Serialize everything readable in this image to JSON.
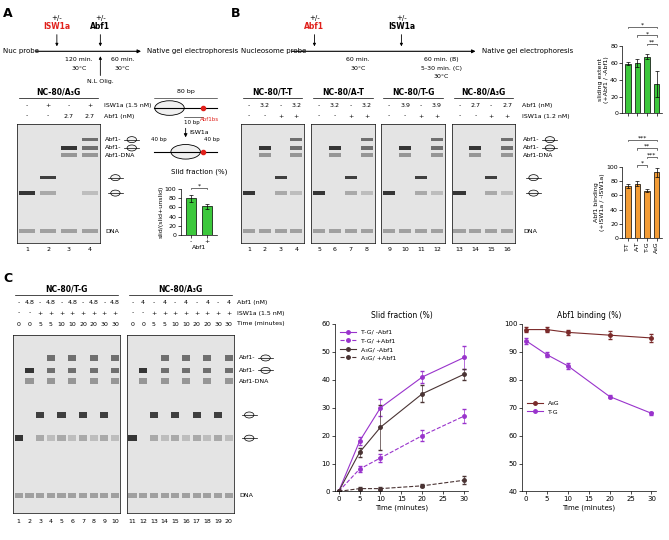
{
  "panel_labels": [
    "A",
    "B",
    "C"
  ],
  "panel_A": {
    "scheme": {
      "start": "Nuc probe",
      "steps": [
        {
          "pm": "+/-",
          "agent": "ISW1a",
          "color": "#e0201b"
        },
        {
          "pm": "+/-",
          "agent": "Abf1",
          "color": "#000000"
        }
      ],
      "times": [
        [
          "120 min.",
          "30°C"
        ],
        [
          "60 min.",
          "30°C"
        ]
      ],
      "end": "Native gel electrophoresis",
      "addition": "N.L Olig."
    },
    "gel": {
      "row_labels": [
        "ISW1a (1.5 nM)",
        "Abf1 (nM)"
      ],
      "groups": [
        {
          "title": "NC-80/A₃G",
          "rows": [
            [
              "-",
              "+",
              "-",
              "+"
            ],
            [
              "-",
              "-",
              "2.7",
              "2.7"
            ]
          ],
          "lanes": [
            1,
            2,
            3,
            4
          ]
        }
      ],
      "band_labels": [
        "Abf1-",
        "Abf1-",
        "Abf1-DNA",
        "DNA"
      ]
    },
    "diagram": {
      "length": "80 bp",
      "site": "10 bp",
      "site_label": "Abf1bs",
      "enzyme": "ISW1a",
      "left": "40 bp",
      "right": "40 bp"
    }
  },
  "panel_B": {
    "scheme": {
      "start": "Nucleosome probe",
      "steps": [
        {
          "pm": "+/-",
          "agent": "Abf1",
          "color": "#e0201b"
        },
        {
          "pm": "+/-",
          "agent": "ISW1a",
          "color": "#000000"
        }
      ],
      "times": [
        [
          "60 min.",
          "30°C"
        ],
        [
          "60 min. (B)",
          "5-30 min. (C)",
          "30°C"
        ]
      ],
      "end": "Native gel electrophoresis"
    },
    "gel": {
      "row_labels": [
        "Abf1 (nM)",
        "ISW1a (1.2 nM)"
      ],
      "groups": [
        {
          "title": "NC-80/T-T",
          "rows": [
            [
              "-",
              "3.2",
              "-",
              "3.2"
            ],
            [
              "-",
              "-",
              "+",
              "+"
            ]
          ],
          "lanes": [
            1,
            2,
            3,
            4
          ]
        },
        {
          "title": "NC-80/A-T",
          "rows": [
            [
              "-",
              "3.2",
              "-",
              "3.2"
            ],
            [
              "-",
              "-",
              "+",
              "+"
            ]
          ],
          "lanes": [
            5,
            6,
            7,
            8
          ]
        },
        {
          "title": "NC-80/T-G",
          "rows": [
            [
              "-",
              "3.9",
              "-",
              "3.9"
            ],
            [
              "-",
              "-",
              "+",
              "+"
            ]
          ],
          "lanes": [
            9,
            10,
            11,
            12
          ]
        },
        {
          "title": "NC-80/A₃G",
          "rows": [
            [
              "-",
              "2.7",
              "-",
              "2.7"
            ],
            [
              "-",
              "-",
              "+",
              "+"
            ]
          ],
          "lanes": [
            13,
            14,
            15,
            16
          ]
        }
      ],
      "band_labels": [
        "Abf1-",
        "Abf1-",
        "Abf1-DNA",
        "DNA"
      ]
    }
  },
  "panel_C": {
    "gel": {
      "row_labels": [
        "Abf1 (nM)",
        "ISW1a (1.5 nM)",
        "Time (minutes)"
      ],
      "groups": [
        {
          "title": "NC-80/T-G",
          "rows": [
            [
              "-",
              "4.8",
              "-",
              "4.8",
              "-",
              "4.8",
              "-",
              "4.8",
              "-",
              "4.8"
            ],
            [
              "-",
              "-",
              "+",
              "+",
              "+",
              "+",
              "+",
              "+",
              "+",
              "+"
            ],
            [
              0,
              0,
              5,
              5,
              10,
              10,
              20,
              20,
              30,
              30
            ]
          ],
          "lanes": [
            1,
            2,
            3,
            4,
            5,
            6,
            7,
            8,
            9,
            10
          ]
        },
        {
          "title": "NC-80/A₃G",
          "rows": [
            [
              "-",
              "4",
              "-",
              "4",
              "-",
              "4",
              "-",
              "4",
              "-",
              "4"
            ],
            [
              "-",
              "-",
              "+",
              "+",
              "+",
              "+",
              "+",
              "+",
              "+",
              "+"
            ],
            [
              0,
              0,
              5,
              5,
              10,
              10,
              20,
              20,
              30,
              30
            ]
          ],
          "lanes": [
            11,
            12,
            13,
            14,
            15,
            16,
            17,
            18,
            19,
            20
          ]
        }
      ],
      "band_labels": [
        "Abf1-",
        "Abf1-",
        "Abf1-DNA",
        "DNA"
      ]
    }
  },
  "chart_data": [
    {
      "type": "bar",
      "title": "Slid fraction (%)",
      "x_label": "Abf1",
      "y_label": "slid/(slid+unslid)",
      "categories": [
        "-",
        "+"
      ],
      "values": [
        80,
        62
      ],
      "errors": [
        8,
        6
      ],
      "color": "#3cc83c",
      "ylim": [
        0,
        100
      ],
      "yticks": [
        0,
        20,
        40,
        60,
        80,
        100
      ],
      "annotations": [
        {
          "text": "*",
          "pair": [
            "-",
            "+"
          ]
        }
      ]
    },
    {
      "type": "bar",
      "y_label": "sliding extent\n(+Abf1 / -Abf1)",
      "tick_labels": "y",
      "categories": [
        "T-T",
        "A-T",
        "T-G",
        "A₃G"
      ],
      "values": [
        59,
        60,
        67,
        35
      ],
      "errors": [
        2,
        5,
        3,
        15
      ],
      "color": "#3cc83c",
      "ylim": [
        0,
        80
      ],
      "yticks": [
        0,
        20,
        40,
        60,
        80
      ],
      "annotations": [
        {
          "text": "**",
          "pair": [
            "T-G",
            "A₃G"
          ]
        },
        {
          "text": "*",
          "pair": [
            "A-T",
            "A₃G"
          ]
        },
        {
          "text": "*",
          "pair": [
            "T-T",
            "A₃G"
          ]
        }
      ]
    },
    {
      "type": "bar",
      "y_label": "Abf1 binding\n(+ISW1a / -ISW1a)",
      "categories": [
        "T-T",
        "A-T",
        "T-G",
        "A₃G"
      ],
      "values": [
        73,
        77,
        67,
        93
      ],
      "errors": [
        3,
        4,
        2,
        6
      ],
      "color": "#f39c35",
      "ylim": [
        0,
        100
      ],
      "yticks": [
        0,
        20,
        40,
        60,
        80,
        100
      ],
      "annotations": [
        {
          "text": "*",
          "pair": [
            "A-T",
            "T-G"
          ]
        },
        {
          "text": "***",
          "pair": [
            "T-G",
            "A₃G"
          ]
        },
        {
          "text": "**",
          "pair": [
            "A-T",
            "A₃G"
          ]
        },
        {
          "text": "***",
          "pair": [
            "T-T",
            "A₃G"
          ]
        }
      ]
    },
    {
      "type": "line",
      "title": "Slid fraction (%)",
      "x_label": "Time (minutes)",
      "legend": "upper left",
      "x": [
        0,
        5,
        10,
        20,
        30
      ],
      "xlim": [
        -1,
        31
      ],
      "xticks": [
        0,
        5,
        10,
        15,
        20,
        25,
        30
      ],
      "ylim": [
        0,
        60
      ],
      "yticks": [
        0,
        10,
        20,
        30,
        40,
        50,
        60
      ],
      "series": [
        {
          "name": "T-G/ -Abf1",
          "color": "#9933cc",
          "marker": "o",
          "line_style": "solid",
          "values": [
            0,
            18,
            30,
            41,
            48
          ],
          "errors": [
            0,
            1.5,
            3,
            2,
            4
          ]
        },
        {
          "name": "T-G/ +Abf1",
          "color": "#9933cc",
          "marker": "o",
          "line_style": "dashed",
          "values": [
            0,
            8,
            12,
            20,
            27
          ],
          "errors": [
            0,
            1,
            1.5,
            2,
            2.5
          ]
        },
        {
          "name": "A₃G/ -Abf1",
          "color": "#4a3434",
          "marker": "o",
          "line_style": "solid",
          "values": [
            0,
            14,
            23,
            35,
            42
          ],
          "errors": [
            0,
            1.5,
            8,
            3,
            2
          ]
        },
        {
          "name": "A₃G/ +Abf1",
          "color": "#4a3434",
          "marker": "o",
          "line_style": "dashed",
          "values": [
            0,
            1,
            1,
            2,
            4
          ],
          "errors": [
            0,
            0.5,
            0.5,
            0.5,
            1.5
          ]
        }
      ]
    },
    {
      "type": "line",
      "title": "Abf1 binding (%)",
      "x_label": "Time (minutes)",
      "legend": "center left",
      "x": [
        0,
        5,
        10,
        20,
        30
      ],
      "xlim": [
        -1,
        31
      ],
      "xticks": [
        0,
        5,
        10,
        15,
        20,
        25,
        30
      ],
      "ylim": [
        40,
        100
      ],
      "yticks": [
        40,
        50,
        60,
        70,
        80,
        90,
        100
      ],
      "series": [
        {
          "name": "A₃G",
          "color": "#7a2a2a",
          "marker": "o",
          "line_style": "solid",
          "values": [
            98,
            98,
            97,
            96,
            95
          ],
          "errors": [
            1,
            1,
            1,
            1.5,
            1.5
          ]
        },
        {
          "name": "T-G",
          "color": "#9933cc",
          "marker": "o",
          "line_style": "solid",
          "values": [
            94,
            89,
            85,
            74,
            68
          ],
          "errors": [
            1,
            1,
            1,
            0.5,
            0.5
          ]
        }
      ]
    }
  ]
}
